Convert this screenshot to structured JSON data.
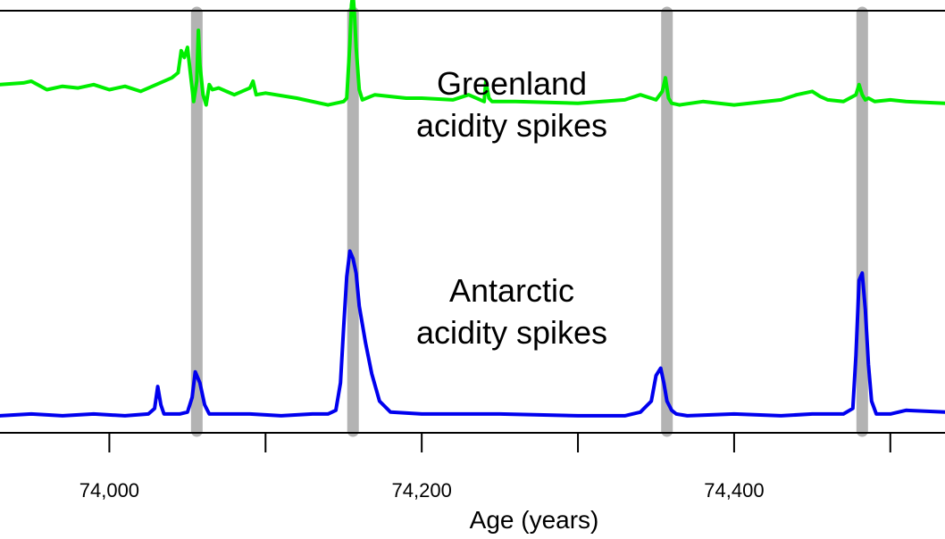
{
  "chart_data": {
    "type": "line",
    "xlabel": "Age (years)",
    "ylabel": "",
    "xlim": [
      73930,
      74535
    ],
    "x_ticks": [
      74000,
      74100,
      74200,
      74300,
      74400,
      74500
    ],
    "x_tick_labels": [
      {
        "value": 74000,
        "label": "74,000"
      },
      {
        "value": 74200,
        "label": "74,200"
      },
      {
        "value": 74400,
        "label": "74,400"
      }
    ],
    "matched_events": [
      74056,
      74156,
      74357,
      74482
    ],
    "series": [
      {
        "name": "Greenland acidity spikes",
        "color": "#00ee00",
        "x": [
          73930,
          73945,
          73950,
          73960,
          73970,
          73980,
          73990,
          74000,
          74010,
          74020,
          74030,
          74040,
          74044,
          74046,
          74048,
          74050,
          74052,
          74054,
          74056,
          74057,
          74058,
          74060,
          74062,
          74064,
          74066,
          74070,
          74080,
          74090,
          74092,
          74094,
          74100,
          74120,
          74140,
          74150,
          74152,
          74154,
          74155,
          74156,
          74157,
          74158,
          74160,
          74162,
          74170,
          74190,
          74200,
          74220,
          74230,
          74240,
          74241,
          74243,
          74245,
          74260,
          74300,
          74330,
          74340,
          74350,
          74354,
          74356,
          74357,
          74358,
          74360,
          74365,
          74380,
          74400,
          74430,
          74440,
          74450,
          74455,
          74460,
          74470,
          74478,
          74480,
          74482,
          74484,
          74486,
          74490,
          74500,
          74510,
          74535
        ],
        "values": [
          0.58,
          0.59,
          0.6,
          0.55,
          0.57,
          0.56,
          0.58,
          0.55,
          0.57,
          0.54,
          0.58,
          0.62,
          0.65,
          0.78,
          0.74,
          0.8,
          0.64,
          0.48,
          0.6,
          0.9,
          0.7,
          0.52,
          0.46,
          0.58,
          0.55,
          0.56,
          0.52,
          0.56,
          0.6,
          0.52,
          0.53,
          0.5,
          0.46,
          0.48,
          0.5,
          0.82,
          1.05,
          1.12,
          0.98,
          0.8,
          0.55,
          0.49,
          0.52,
          0.5,
          0.5,
          0.49,
          0.52,
          0.48,
          0.6,
          0.5,
          0.48,
          0.48,
          0.47,
          0.49,
          0.52,
          0.49,
          0.54,
          0.62,
          0.56,
          0.5,
          0.47,
          0.46,
          0.48,
          0.46,
          0.49,
          0.52,
          0.54,
          0.51,
          0.49,
          0.48,
          0.52,
          0.58,
          0.52,
          0.49,
          0.5,
          0.48,
          0.49,
          0.48,
          0.47
        ]
      },
      {
        "name": "Antarctic acidity spikes",
        "color": "#0000ee",
        "x": [
          73930,
          73950,
          73970,
          73990,
          74010,
          74025,
          74029,
          74031,
          74033,
          74035,
          74045,
          74050,
          74053,
          74055,
          74058,
          74061,
          74064,
          74070,
          74090,
          74110,
          74130,
          74140,
          74145,
          74148,
          74150,
          74152,
          74154,
          74156,
          74158,
          74160,
          74164,
          74168,
          74173,
          74180,
          74200,
          74250,
          74300,
          74330,
          74340,
          74347,
          74350,
          74353,
          74355,
          74357,
          74360,
          74363,
          74370,
          74400,
          74430,
          74450,
          74470,
          74476,
          74478,
          74480,
          74482,
          74484,
          74486,
          74488,
          74491,
          74500,
          74510,
          74535
        ],
        "values": [
          0.02,
          0.03,
          0.02,
          0.03,
          0.02,
          0.03,
          0.06,
          0.18,
          0.08,
          0.03,
          0.03,
          0.04,
          0.12,
          0.26,
          0.2,
          0.08,
          0.03,
          0.03,
          0.03,
          0.02,
          0.03,
          0.03,
          0.05,
          0.2,
          0.5,
          0.78,
          0.92,
          0.88,
          0.8,
          0.62,
          0.42,
          0.25,
          0.1,
          0.04,
          0.03,
          0.03,
          0.02,
          0.02,
          0.04,
          0.1,
          0.24,
          0.28,
          0.2,
          0.1,
          0.05,
          0.03,
          0.02,
          0.03,
          0.02,
          0.03,
          0.03,
          0.06,
          0.35,
          0.76,
          0.8,
          0.6,
          0.3,
          0.1,
          0.03,
          0.03,
          0.05,
          0.04
        ]
      }
    ],
    "annotations": [
      "Greenland",
      "acidity spikes",
      "Antarctic",
      "acidity spikes"
    ],
    "grid": false,
    "legend": "none"
  }
}
